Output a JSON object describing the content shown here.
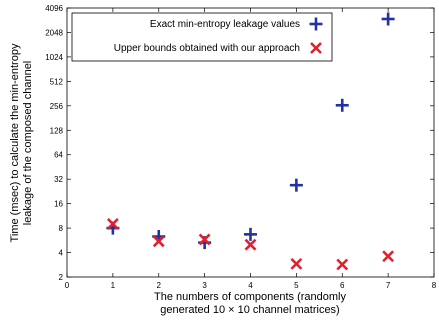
{
  "chart_data": {
    "type": "scatter",
    "xlabel_lines": [
      "The numbers of components (randomly",
      "generated 10 × 10 channel matrices)"
    ],
    "ylabel_lines": [
      "Time (msec) to calculate the min-entropy",
      "leakage of the composed channel"
    ],
    "xlim": [
      0,
      8
    ],
    "ylim": [
      2,
      4096
    ],
    "y_scale": "log2",
    "x_ticks": [
      "0",
      "1",
      "2",
      "3",
      "4",
      "5",
      "6",
      "7",
      "8"
    ],
    "y_ticks": [
      {
        "v": 2,
        "label": "2"
      },
      {
        "v": 4,
        "label": "4"
      },
      {
        "v": 8,
        "label": "8"
      },
      {
        "v": 16,
        "label": "16"
      },
      {
        "v": 32,
        "label": "32"
      },
      {
        "v": 64,
        "label": "64"
      },
      {
        "v": 128,
        "label": "128"
      },
      {
        "v": 256,
        "label": "256"
      },
      {
        "v": 512,
        "label": "512"
      },
      {
        "v": 1024,
        "label": "1024"
      },
      {
        "v": 2048,
        "label": "2048"
      },
      {
        "v": 4096,
        "label": "4096"
      }
    ],
    "legend_position": "top-left",
    "series": [
      {
        "name": "Exact min-entropy leakage values",
        "marker": "plus",
        "color": "#2233a0",
        "x": [
          1,
          2,
          3,
          4,
          5,
          6,
          7
        ],
        "y": [
          8,
          6.3,
          5.3,
          6.7,
          27,
          260,
          3000
        ]
      },
      {
        "name": "Upper bounds obtained with our approach",
        "marker": "cross",
        "color": "#e0202c",
        "x": [
          1,
          2,
          3,
          4,
          5,
          6,
          7
        ],
        "y": [
          9,
          5.5,
          5.8,
          5,
          2.9,
          2.85,
          3.6
        ]
      }
    ]
  }
}
